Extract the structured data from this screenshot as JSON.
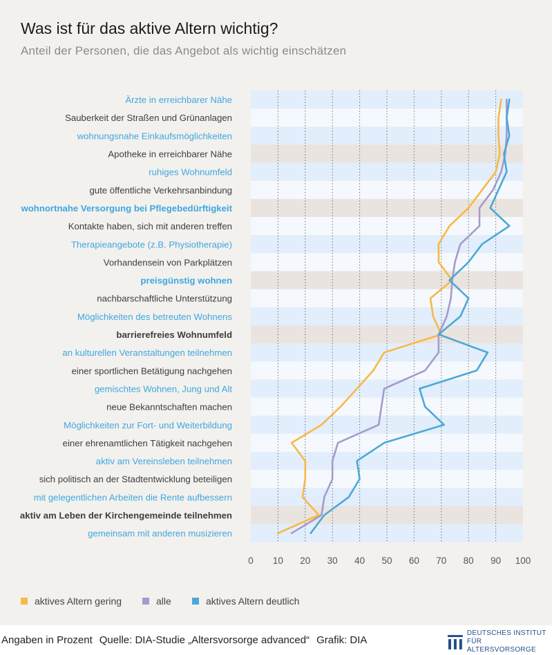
{
  "title": "Was ist für das aktive Altern wichtig?",
  "subtitle": "Anteil der Personen, die das Angebot als wichtig einschätzen",
  "footer": {
    "unit_note": "Angaben in Prozent",
    "source": "Quelle: DIA-Studie „Altersvorsorge advanced“",
    "graphic": "Grafik: DIA"
  },
  "logo": {
    "line1": "DEUTSCHES INSTITUT",
    "line2": "FÜR ALTERSVORSORGE"
  },
  "colors": {
    "gering": "#f7b946",
    "alle": "#a49bcb",
    "deutlich": "#4aa8d8",
    "row_light": "#e2eefb",
    "row_white": "#f5f9fd",
    "row_gray": "#e9e4df",
    "label_blue": "#3ea7e0",
    "label_dark": "#3d3d3d"
  },
  "chart_data": {
    "type": "line",
    "orientation": "horizontal",
    "title": "Was ist für das aktive Altern wichtig?",
    "subtitle": "Anteil der Personen, die das Angebot als wichtig einschätzen",
    "xlabel": "Angaben in Prozent",
    "xlim": [
      0,
      100
    ],
    "xticks": [
      0,
      10,
      20,
      30,
      40,
      50,
      60,
      70,
      80,
      90,
      100
    ],
    "categories": [
      "Ärzte in erreichbarer Nähe",
      "Sauberkeit der Straßen und Grünanlagen",
      "wohnungsnahe Einkaufsmöglichkeiten",
      "Apotheke in erreichbarer Nähe",
      "ruhiges Wohnumfeld",
      "gute öffentliche Verkehrsanbindung",
      "wohnortnahe Versorgung bei Pflegebedürftigkeit",
      "Kontakte haben, sich mit anderen treffen",
      "Therapieangebote (z.B. Physiotherapie)",
      "Vorhandensein von Parkplätzen",
      "preisgünstig wohnen",
      "nachbarschaftliche Unterstützung",
      "Möglichkeiten des betreuten Wohnens",
      "barrierefreies Wohnumfeld",
      "an kulturellen Veranstaltungen teilnehmen",
      "einer sportlichen Betätigung nachgehen",
      "gemischtes Wohnen, Jung und Alt",
      "neue Bekanntschaften machen",
      "Möglichkeiten zur Fort- und Weiterbildung",
      "einer ehrenamtlichen Tätigkeit nachgehen",
      "aktiv am Vereinsleben teilnehmen",
      "sich politisch an der Stadtentwicklung beteiligen",
      "mit gelegentlichen Arbeiten die Rente aufbessern",
      "aktiv am Leben der Kirchengemeinde teilnehmen",
      "gemeinsam mit anderen musizieren"
    ],
    "label_styles": [
      "blue",
      "dark",
      "blue",
      "dark",
      "blue",
      "dark",
      "blue-bold",
      "dark",
      "blue",
      "dark",
      "blue-bold",
      "dark",
      "blue",
      "dark-bold",
      "blue",
      "dark",
      "blue",
      "dark",
      "blue",
      "dark",
      "blue",
      "dark",
      "blue",
      "dark-bold",
      "blue"
    ],
    "row_styles": [
      "light",
      "white",
      "light",
      "gray",
      "light",
      "white",
      "gray",
      "white",
      "light",
      "white",
      "gray",
      "white",
      "light",
      "gray",
      "light",
      "white",
      "light",
      "white",
      "light",
      "white",
      "light",
      "white",
      "light",
      "gray",
      "light"
    ],
    "series": [
      {
        "name": "aktives Altern gering",
        "key": "gering",
        "values": [
          92,
          91,
          91,
          91.5,
          90,
          85,
          80,
          73,
          69,
          69,
          74,
          66,
          67,
          70,
          49,
          45,
          39,
          33,
          26,
          15,
          20,
          20,
          19,
          25,
          10
        ]
      },
      {
        "name": "alle",
        "key": "alle",
        "values": [
          94,
          94,
          94,
          93.5,
          92,
          89,
          84,
          84,
          77,
          75,
          74,
          73.5,
          72,
          69,
          69,
          64,
          49,
          48,
          47,
          32,
          30,
          30,
          27,
          26,
          15
        ]
      },
      {
        "name": "aktives Altern deutlich",
        "key": "deutlich",
        "values": [
          95,
          94,
          95,
          93,
          94,
          91,
          88,
          95,
          85,
          80,
          73,
          80,
          77,
          69,
          87,
          83,
          62,
          64,
          71,
          49,
          39,
          40,
          36,
          27,
          22
        ]
      }
    ],
    "legend": [
      "aktives Altern gering",
      "alle",
      "aktives Altern deutlich"
    ],
    "legend_position": "bottom-left",
    "grid": "vertical-dotted"
  }
}
